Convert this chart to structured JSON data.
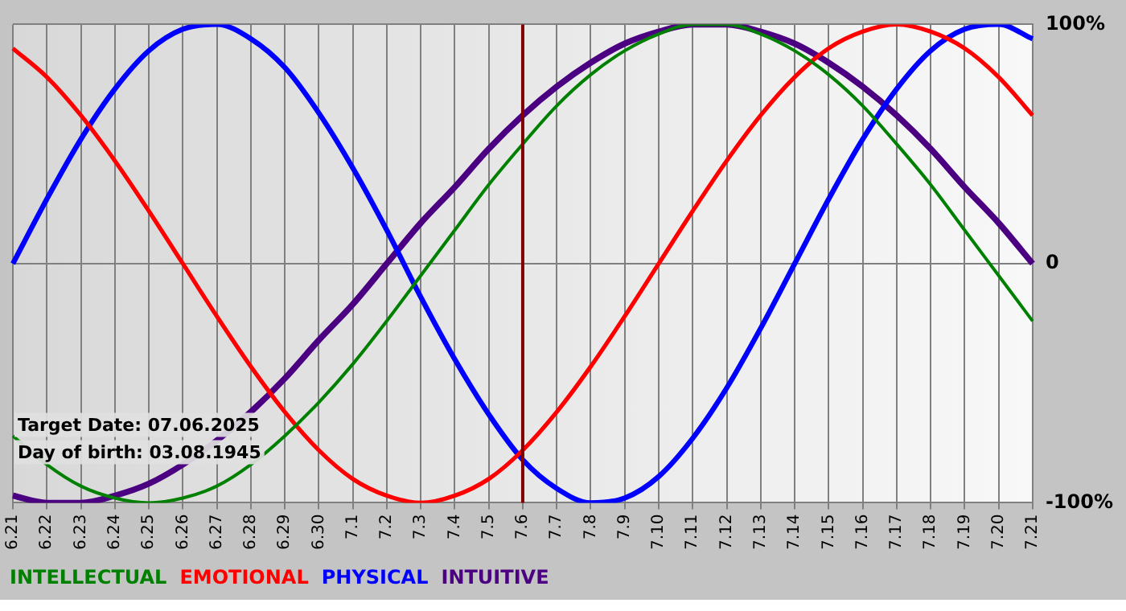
{
  "chart_data": {
    "type": "line",
    "categories": [
      "6.21",
      "6.22",
      "6.23",
      "6.24",
      "6.25",
      "6.26",
      "6.27",
      "6.28",
      "6.29",
      "6.30",
      "7.1",
      "7.2",
      "7.3",
      "7.4",
      "7.5",
      "7.6",
      "7.7",
      "7.8",
      "7.9",
      "7.10",
      "7.11",
      "7.12",
      "7.13",
      "7.14",
      "7.15",
      "7.16",
      "7.17",
      "7.18",
      "7.19",
      "7.20",
      "7.21"
    ],
    "series": [
      {
        "name": "INTELLECTUAL",
        "color": "#008000",
        "values": [
          -72,
          -84,
          -93,
          -98,
          -100,
          -98,
          -93,
          -84,
          -72,
          -58,
          -42,
          -24,
          -5,
          14,
          33,
          50,
          66,
          79,
          89,
          96,
          100,
          100,
          96,
          89,
          79,
          66,
          50,
          33,
          14,
          -5,
          -24
        ]
      },
      {
        "name": "EMOTIONAL",
        "color": "#ff0000",
        "values": [
          90,
          78,
          62,
          43,
          22,
          0,
          -22,
          -43,
          -62,
          -78,
          -90,
          -97,
          -100,
          -97,
          -90,
          -78,
          -62,
          -43,
          -22,
          0,
          22,
          43,
          62,
          78,
          90,
          97,
          100,
          97,
          90,
          78,
          62
        ]
      },
      {
        "name": "PHYSICAL",
        "color": "#0000ff",
        "values": [
          0,
          27,
          52,
          73,
          89,
          98,
          100,
          94,
          82,
          63,
          40,
          14,
          -14,
          -40,
          -63,
          -82,
          -94,
          -100,
          -98,
          -89,
          -73,
          -52,
          -27,
          0,
          27,
          52,
          73,
          89,
          98,
          100,
          94
        ]
      },
      {
        "name": "INTUITIVE",
        "color": "#4b0082",
        "values": [
          -97,
          -100,
          -100,
          -97,
          -92,
          -84,
          -74,
          -62,
          -48,
          -32,
          -17,
          0,
          17,
          32,
          48,
          62,
          74,
          84,
          92,
          97,
          100,
          100,
          97,
          92,
          84,
          74,
          62,
          48,
          32,
          17,
          0
        ]
      }
    ],
    "ylim": [
      -100,
      100
    ],
    "yticks": [
      {
        "value": -100,
        "label": "-100%"
      },
      0,
      {
        "value": 100,
        "label": "100%"
      }
    ],
    "grid": true,
    "legend": "bottom",
    "marker": "none",
    "line_style": "solid",
    "ref_lines": [
      {
        "axis": "x",
        "value": "7.6",
        "color": "#800000"
      }
    ],
    "annotations": [
      "Target Date: 07.06.2025",
      "Day of birth: 03.08.1945"
    ]
  }
}
